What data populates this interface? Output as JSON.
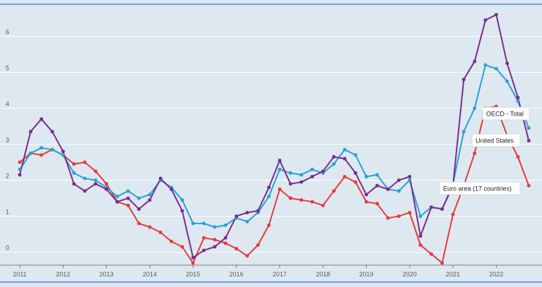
{
  "chart_data": {
    "type": "line",
    "x": [
      "2011-Q1",
      "2011-Q2",
      "2011-Q3",
      "2011-Q4",
      "2012-Q1",
      "2012-Q2",
      "2012-Q3",
      "2012-Q4",
      "2013-Q1",
      "2013-Q2",
      "2013-Q3",
      "2013-Q4",
      "2014-Q1",
      "2014-Q2",
      "2014-Q3",
      "2014-Q4",
      "2015-Q1",
      "2015-Q2",
      "2015-Q3",
      "2015-Q4",
      "2016-Q1",
      "2016-Q2",
      "2016-Q3",
      "2016-Q4",
      "2017-Q1",
      "2017-Q2",
      "2017-Q3",
      "2017-Q4",
      "2018-Q1",
      "2018-Q2",
      "2018-Q3",
      "2018-Q4",
      "2019-Q1",
      "2019-Q2",
      "2019-Q3",
      "2019-Q4",
      "2020-Q1",
      "2020-Q2",
      "2020-Q3",
      "2020-Q4",
      "2021-Q1",
      "2021-Q2",
      "2021-Q3",
      "2021-Q4",
      "2022-Q1",
      "2022-Q2",
      "2022-Q3",
      "2022-Q4"
    ],
    "xticks": [
      "2011",
      "2012",
      "2013",
      "2014",
      "2015",
      "2016",
      "2017",
      "2018",
      "2019",
      "2020",
      "2021",
      "2022"
    ],
    "ylim": [
      -0.3,
      6.9
    ],
    "yticks": [
      0,
      1,
      2,
      3,
      4,
      5,
      6
    ],
    "grid": true,
    "series": [
      {
        "name": "OECD - Total",
        "color": "#2aa0d4",
        "values": [
          2.3,
          2.75,
          2.9,
          2.85,
          2.7,
          2.2,
          2.05,
          2.0,
          1.8,
          1.55,
          1.7,
          1.5,
          1.6,
          2.0,
          1.8,
          1.45,
          0.8,
          0.8,
          0.7,
          0.75,
          0.95,
          0.85,
          1.1,
          1.55,
          2.3,
          2.2,
          2.15,
          2.3,
          2.2,
          2.45,
          2.85,
          2.7,
          2.1,
          2.15,
          1.75,
          1.7,
          2.0,
          1.0,
          1.25,
          1.2,
          1.9,
          3.35,
          4.0,
          5.2,
          5.1,
          4.75,
          4.2,
          3.45
        ]
      },
      {
        "name": "United States",
        "color": "#7b2d8b",
        "values": [
          2.15,
          3.35,
          3.7,
          3.35,
          2.8,
          1.9,
          1.7,
          1.9,
          1.75,
          1.4,
          1.5,
          1.2,
          1.45,
          2.05,
          1.75,
          1.15,
          -0.15,
          0.05,
          0.15,
          0.4,
          1.0,
          1.1,
          1.15,
          1.8,
          2.55,
          1.9,
          1.95,
          2.1,
          2.25,
          2.65,
          2.6,
          2.2,
          1.6,
          1.85,
          1.75,
          2.0,
          2.1,
          0.45,
          1.25,
          1.2,
          1.85,
          4.8,
          5.3,
          6.45,
          6.6,
          5.25,
          4.3,
          3.1
        ]
      },
      {
        "name": "Euro area (17 countries)",
        "color": "#e53a3a",
        "values": [
          2.5,
          2.75,
          2.7,
          2.85,
          2.7,
          2.45,
          2.5,
          2.25,
          1.9,
          1.4,
          1.3,
          0.8,
          0.7,
          0.55,
          0.3,
          0.15,
          -0.3,
          0.4,
          0.35,
          0.25,
          0.1,
          -0.1,
          0.2,
          0.75,
          1.75,
          1.5,
          1.45,
          1.4,
          1.3,
          1.7,
          2.1,
          1.95,
          1.4,
          1.35,
          0.95,
          1.0,
          1.1,
          0.2,
          -0.05,
          -0.3,
          1.05,
          1.85,
          2.75,
          4.0,
          4.05,
          3.25,
          2.65,
          1.85
        ]
      }
    ]
  }
}
